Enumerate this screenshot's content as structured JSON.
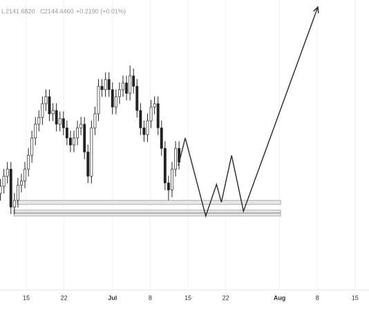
{
  "chart_data": {
    "type": "candlestick",
    "legend": {
      "low_label": "L",
      "low": "2141.6820",
      "close_label": "C",
      "close": "2144.4460",
      "change": "+0.2190 (+0.01%)"
    },
    "color_up": "#ffffff",
    "color_down": "#222222",
    "outline": "#222222",
    "xlim": [
      -4.87,
      63.59
    ],
    "ylim": [
      2080,
      2200
    ],
    "grid": true,
    "xticks": [
      {
        "value": 0,
        "label": "15"
      },
      {
        "value": 7,
        "label": "22"
      },
      {
        "value": 16,
        "label": "Jul"
      },
      {
        "value": 23,
        "label": "8"
      },
      {
        "value": 30,
        "label": "15"
      },
      {
        "value": 37,
        "label": "22"
      },
      {
        "value": 47,
        "label": "Aug"
      },
      {
        "value": 54,
        "label": "8"
      },
      {
        "value": 61,
        "label": "15"
      }
    ],
    "x": [
      -4.8,
      -4.15,
      -3.5,
      -2.85,
      -2.2,
      -1.55,
      -0.9,
      -0.25,
      0.4,
      1.05,
      1.7,
      2.35,
      3,
      3.65,
      4.3,
      4.95,
      5.6,
      6.25,
      6.9,
      7.55,
      8.2,
      8.85,
      9.5,
      10.15,
      10.8,
      11.45,
      12.1,
      12.75,
      13.4,
      14.05,
      14.7,
      15.35,
      16,
      16.65,
      17.3,
      17.95,
      18.6,
      19.25,
      19.9,
      20.55,
      21.2,
      21.85,
      22.5,
      23.15,
      23.8,
      24.45,
      25.1,
      25.75,
      26.4,
      27.05,
      27.7,
      28.35
    ],
    "open": [
      2120.0,
      2122.9,
      2127.1,
      2130.0,
      2114.3,
      2117.1,
      2123.4,
      2125.1,
      2130.0,
      2135.7,
      2142.9,
      2148.6,
      2151.4,
      2157.1,
      2160.0,
      2152.9,
      2154.3,
      2148.6,
      2150.9,
      2147.1,
      2142.9,
      2140.0,
      2142.9,
      2147.1,
      2148.6,
      2137.1,
      2127.1,
      2147.1,
      2152.9,
      2164.3,
      2162.9,
      2167.1,
      2162.9,
      2155.7,
      2160.0,
      2162.9,
      2165.7,
      2161.4,
      2168.6,
      2164.3,
      2154.3,
      2147.1,
      2144.3,
      2150.0,
      2155.7,
      2157.1,
      2147.1,
      2138.6,
      2124.3,
      2121.4,
      2130.0,
      2138.6
    ],
    "high": [
      2125.9,
      2130.1,
      2133.0,
      2133.0,
      2120.1,
      2126.4,
      2128.1,
      2133.0,
      2138.7,
      2145.9,
      2151.6,
      2154.4,
      2160.1,
      2163.0,
      2163.0,
      2157.3,
      2157.3,
      2153.9,
      2153.9,
      2150.1,
      2145.9,
      2145.9,
      2150.1,
      2151.6,
      2151.6,
      2140.1,
      2150.1,
      2155.9,
      2167.3,
      2167.3,
      2170.1,
      2170.1,
      2165.9,
      2163.0,
      2165.9,
      2168.7,
      2168.7,
      2172.9,
      2171.6,
      2167.3,
      2157.3,
      2150.1,
      2153.0,
      2158.7,
      2160.1,
      2160.1,
      2150.1,
      2141.6,
      2127.3,
      2133.0,
      2141.6,
      2141.6
    ],
    "low": [
      2117.0,
      2119.9,
      2124.1,
      2111.4,
      2111.3,
      2114.1,
      2120.4,
      2122.1,
      2127.0,
      2132.7,
      2139.9,
      2145.6,
      2148.4,
      2154.1,
      2149.9,
      2149.9,
      2145.6,
      2145.6,
      2144.1,
      2139.9,
      2137.0,
      2137.0,
      2139.9,
      2144.1,
      2134.1,
      2124.3,
      2124.1,
      2144.1,
      2149.9,
      2159.9,
      2159.9,
      2159.9,
      2152.7,
      2152.7,
      2157.0,
      2159.9,
      2158.4,
      2158.4,
      2161.3,
      2151.3,
      2144.1,
      2141.3,
      2141.3,
      2147.0,
      2152.7,
      2144.1,
      2135.6,
      2121.3,
      2117.1,
      2118.4,
      2127.0,
      2129.9
    ],
    "close": [
      2122.9,
      2127.1,
      2130.0,
      2114.3,
      2117.1,
      2123.4,
      2125.1,
      2130.0,
      2135.7,
      2142.9,
      2148.6,
      2151.4,
      2157.1,
      2160.0,
      2152.9,
      2154.3,
      2148.6,
      2150.9,
      2147.1,
      2142.9,
      2140.0,
      2142.9,
      2147.1,
      2148.6,
      2137.1,
      2127.1,
      2147.1,
      2152.9,
      2164.3,
      2162.9,
      2167.1,
      2162.9,
      2155.7,
      2160.0,
      2162.9,
      2165.7,
      2161.4,
      2168.6,
      2164.3,
      2154.3,
      2147.1,
      2144.3,
      2150.0,
      2155.7,
      2157.1,
      2147.1,
      2138.6,
      2124.3,
      2121.4,
      2130.0,
      2138.6,
      2132.9
    ],
    "projection": {
      "color": "#333333",
      "x": [
        28.2,
        29.5,
        33.3,
        35.3,
        36.2,
        38.1,
        40.3,
        54.1
      ],
      "values": [
        2131.4,
        2142.9,
        2110.6,
        2123.7,
        2116.3,
        2135.7,
        2112.6,
        2197.1
      ]
    },
    "zones": [
      {
        "x": [
          -1.7,
          47.2
        ],
        "y": [
          2115.4,
          2117.1
        ]
      },
      {
        "x": [
          -2.3,
          47.2
        ],
        "y": [
          2112.0,
          2113.1
        ]
      },
      {
        "x": [
          -2.3,
          47.2
        ],
        "y": [
          2110.6,
          2111.7
        ]
      }
    ]
  }
}
